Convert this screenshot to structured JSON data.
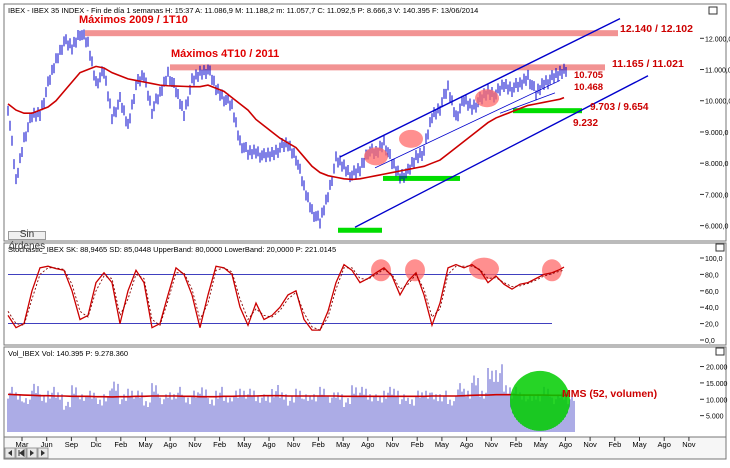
{
  "colors": {
    "price": "#0000cc",
    "ma": "#cc0000",
    "channel": "#0000cc",
    "resistance": "#f08080",
    "support": "#00dd00",
    "highlight": "#ff6a6a",
    "highlight_green": "#00cc00",
    "annotation": "#e00000",
    "level": "#cc0000",
    "grid": "#0000aa"
  },
  "chart_data": [
    {
      "type": "line",
      "header": "IBEX - IBEX 35 INDEX - Fin de día 1 semanas  H: 15:37  A: 11.086,9  M: 11.188,2  m: 11.057,7  C: 11.092,5  P: 8.666,3  V: 140.395  F: 13/06/2014",
      "x_ticks": [
        "Mar",
        "Jun",
        "Sep",
        "Dic",
        "Feb",
        "May",
        "Ago",
        "Nov",
        "Feb",
        "May",
        "Ago",
        "Nov",
        "Feb",
        "May",
        "Ago",
        "Nov",
        "Feb",
        "May",
        "Ago",
        "Nov",
        "Feb",
        "May",
        "Ago",
        "Nov",
        "Feb",
        "May",
        "Ago",
        "Nov"
      ],
      "y_ticks": [
        "12.000,0",
        "11.000,0",
        "10.000,0",
        "9.000,0",
        "8.000,0",
        "7.000,0",
        "6.000,0"
      ],
      "ylim": [
        5700,
        12650
      ],
      "x": [
        0,
        8,
        16,
        24,
        32,
        40,
        48,
        56,
        64,
        72,
        80,
        88,
        96,
        104,
        112,
        120,
        128,
        136,
        144,
        152,
        160,
        168,
        176,
        184,
        192,
        200,
        208,
        216,
        224,
        232,
        240,
        248,
        256,
        264,
        272,
        280,
        288,
        296,
        304,
        312,
        320,
        328,
        336,
        344,
        352,
        360,
        368,
        376,
        384,
        392,
        400,
        408,
        416,
        424,
        432,
        440,
        448,
        456,
        464,
        472,
        480,
        488,
        496,
        504,
        512,
        520,
        528,
        536,
        544,
        552,
        556
      ],
      "close": [
        9800,
        7400,
        8800,
        9500,
        9600,
        10500,
        11300,
        11900,
        11700,
        12200,
        11800,
        10600,
        10900,
        9500,
        10000,
        9200,
        10500,
        10800,
        9700,
        10200,
        10900,
        10300,
        9600,
        10600,
        10900,
        11000,
        10400,
        10100,
        9800,
        8700,
        8300,
        8400,
        8200,
        8300,
        8500,
        8600,
        8200,
        7200,
        6500,
        6100,
        7000,
        8100,
        7900,
        7600,
        7800,
        8400,
        8300,
        8700,
        8000,
        7600,
        7700,
        8200,
        8400,
        9500,
        9800,
        10400,
        9500,
        10000,
        9800,
        10000,
        10300,
        10200,
        10500,
        10400,
        10500,
        10800,
        10200,
        10600,
        10700,
        10900,
        11090
      ],
      "ma": [
        9900,
        9700,
        9600,
        9600,
        9700,
        9800,
        10000,
        10300,
        10600,
        10900,
        11000,
        11100,
        11050,
        10900,
        10800,
        10700,
        10650,
        10600,
        10550,
        10500,
        10480,
        10470,
        10460,
        10450,
        10450,
        10500,
        10400,
        10300,
        10100,
        9900,
        9700,
        9400,
        9200,
        9000,
        8800,
        8650,
        8500,
        8200,
        7900,
        7700,
        7600,
        7550,
        7500,
        7480,
        7500,
        7550,
        7600,
        7650,
        7700,
        7750,
        7800,
        7850,
        7900,
        8000,
        8100,
        8300,
        8500,
        8700,
        8900,
        9100,
        9300,
        9450,
        9550,
        9650,
        9750,
        9850,
        9900,
        9950,
        10000,
        10050,
        10100
      ],
      "channel_lines": [
        {
          "from": [
            340,
            8200
          ],
          "to": [
            620,
            12630
          ]
        },
        {
          "from": [
            355,
            5950
          ],
          "to": [
            648,
            10800
          ]
        },
        {
          "from": [
            375,
            7850
          ],
          "to": [
            560,
            10650
          ]
        },
        {
          "from": [
            500,
            9600
          ],
          "to": [
            555,
            10250
          ]
        }
      ],
      "resistance_zones": [
        {
          "label": "12.140 / 12.102",
          "y1": 12102,
          "y2": 12260,
          "x_start": 85,
          "x_end": 618
        },
        {
          "label": "11.165 / 11.021",
          "y1": 11021,
          "y2": 11165,
          "x_start": 170,
          "x_end": 605
        }
      ],
      "support_zones": [
        {
          "label": "9.703 / 9.654",
          "y1": 9654,
          "y2": 9730,
          "x_start": 513,
          "x_end": 582
        },
        {
          "y1": 7480,
          "y2": 7560,
          "x_start": 383,
          "x_end": 460
        },
        {
          "y1": 5830,
          "y2": 5900,
          "x_start": 338,
          "x_end": 382
        }
      ],
      "level_labels": [
        {
          "text": "10.705",
          "value": 10705
        },
        {
          "text": "10.468",
          "value": 10468
        },
        {
          "text": "9.232",
          "value": 9232
        }
      ],
      "highlights": [
        {
          "x": 376,
          "y": 8220
        },
        {
          "x": 411,
          "y": 8780
        },
        {
          "x": 487,
          "y": 10080
        }
      ],
      "annotations": [
        "Máximos 2009 / 1T10",
        "Máximos 4T10 / 2011"
      ],
      "button_label": "Sin órdenes"
    },
    {
      "type": "line",
      "header": "Stochastic_IBEX  SK: 88,9465  SD: 85,0448  UpperBand: 80,0000  LowerBand: 20,0000  P: 221.0145",
      "y_ticks": [
        "100,0",
        "80,0",
        "60,0",
        "40,0",
        "20,0",
        "0,0"
      ],
      "ylim": [
        0,
        100
      ],
      "bands": [
        80,
        20
      ],
      "x": [
        0,
        8,
        16,
        24,
        32,
        40,
        48,
        56,
        64,
        72,
        80,
        88,
        96,
        104,
        112,
        120,
        128,
        136,
        144,
        152,
        160,
        168,
        176,
        184,
        192,
        200,
        208,
        216,
        224,
        232,
        240,
        248,
        256,
        264,
        272,
        280,
        288,
        296,
        304,
        312,
        320,
        328,
        336,
        344,
        352,
        360,
        368,
        376,
        384,
        392,
        400,
        408,
        416,
        424,
        432,
        440,
        448,
        456,
        464,
        472,
        480,
        488,
        496,
        504,
        512,
        520,
        528,
        536,
        544,
        552,
        556
      ],
      "k": [
        30,
        15,
        20,
        60,
        88,
        90,
        87,
        85,
        60,
        25,
        30,
        70,
        82,
        70,
        20,
        60,
        85,
        70,
        15,
        20,
        55,
        88,
        80,
        55,
        15,
        55,
        90,
        88,
        80,
        40,
        18,
        45,
        25,
        30,
        40,
        55,
        60,
        25,
        12,
        12,
        35,
        70,
        92,
        85,
        70,
        75,
        82,
        88,
        78,
        55,
        72,
        82,
        55,
        18,
        45,
        88,
        92,
        88,
        92,
        85,
        70,
        78,
        68,
        62,
        68,
        70,
        75,
        80,
        82,
        86,
        89
      ],
      "d": [
        35,
        20,
        18,
        50,
        80,
        88,
        88,
        86,
        68,
        35,
        28,
        60,
        78,
        75,
        30,
        50,
        80,
        75,
        25,
        18,
        48,
        82,
        82,
        62,
        25,
        45,
        85,
        88,
        83,
        50,
        25,
        38,
        30,
        28,
        36,
        50,
        58,
        33,
        16,
        12,
        28,
        62,
        88,
        88,
        75,
        74,
        80,
        86,
        80,
        62,
        68,
        80,
        62,
        28,
        38,
        80,
        90,
        90,
        90,
        86,
        75,
        76,
        70,
        65,
        66,
        69,
        73,
        78,
        81,
        84,
        85
      ],
      "highlights": [
        {
          "x": 381,
          "y": 85
        },
        {
          "x": 415,
          "y": 85
        },
        {
          "x": 484,
          "y": 87
        },
        {
          "x": 552,
          "y": 85
        }
      ]
    },
    {
      "type": "bar",
      "header": "Vol_IBEX  Vol: 140.395  P: 9.278.360",
      "y_ticks": [
        "20.000",
        "15.000",
        "10.000",
        "5.000"
      ],
      "ylim": [
        0,
        22000
      ],
      "values": [
        12000,
        11000,
        9000,
        14000,
        10000,
        12000,
        11000,
        8000,
        13000,
        10000,
        12000,
        9000,
        11000,
        14000,
        10000,
        12000,
        11000,
        9000,
        13000,
        10000,
        11000,
        12000,
        10000,
        11000,
        13000,
        9000,
        12000,
        10000,
        11000,
        12000,
        11500,
        10500,
        10000,
        12500,
        11000,
        9500,
        12000,
        10000,
        11000,
        12000,
        10500,
        11000,
        9000,
        13000,
        12000,
        11000,
        10000,
        12000,
        12000,
        10000,
        9500,
        11000,
        12000,
        10500,
        11000,
        9000,
        13000,
        12000,
        15000,
        12000,
        17000,
        18000,
        13000,
        12000,
        11000,
        10000,
        11000,
        12000,
        10000,
        11000,
        10000
      ],
      "ma": [
        11500,
        11400,
        11300,
        11200,
        11100,
        11100,
        11000,
        11000,
        10900,
        10900,
        10900,
        10800,
        10800,
        10700,
        10800,
        10800,
        10900,
        10900,
        11000,
        11000,
        11000,
        11000,
        10900,
        10900,
        10800,
        10800,
        10800,
        10900,
        10900,
        11000,
        11000,
        11000,
        11100,
        11100,
        11100,
        11000,
        11000,
        11000,
        11000,
        11000,
        11000,
        11000,
        10900,
        10900,
        10900,
        10900,
        10900,
        10900,
        10900,
        10900,
        10900,
        10900,
        10900,
        11000,
        11000,
        11000,
        11000,
        11100,
        11200,
        11300,
        11300,
        11400,
        11400,
        11400,
        11300,
        11300,
        11300,
        11300,
        11200,
        11200,
        11200
      ],
      "ma_label": "MMS (52, volumen)",
      "highlight": {
        "x": 540,
        "y": 9500
      }
    }
  ]
}
